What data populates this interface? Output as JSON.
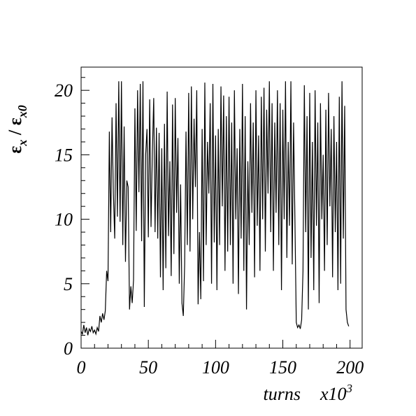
{
  "chart_data": {
    "type": "line",
    "ylabel_parts": [
      "ε",
      "x",
      " / ε",
      "x0"
    ],
    "xlabel": "turns",
    "xmultiplier": "x10",
    "xmultiplier_exp": "3",
    "xlim": [
      0,
      209
    ],
    "ylim": [
      0,
      21.8
    ],
    "xticks": [
      0,
      50,
      100,
      150,
      200
    ],
    "yticks": [
      0,
      5,
      10,
      15,
      20
    ],
    "xminorticks": [
      10,
      20,
      30,
      40,
      60,
      70,
      80,
      90,
      110,
      120,
      130,
      140,
      160,
      170,
      180,
      190
    ],
    "yminorticks": [
      1,
      2,
      3,
      4,
      6,
      7,
      8,
      9,
      11,
      12,
      13,
      14,
      16,
      17,
      18,
      19,
      21
    ],
    "series": [
      {
        "color": "#000000",
        "x": [
          0,
          1,
          2,
          3,
          4,
          5,
          6,
          7,
          8,
          9,
          10,
          11,
          12,
          13,
          14,
          15,
          16,
          17,
          18,
          19,
          20,
          21,
          22,
          23,
          24,
          25,
          26,
          27,
          28,
          29,
          30,
          31,
          32,
          33,
          34,
          35,
          36,
          37,
          38,
          39,
          40,
          41,
          42,
          43,
          44,
          45,
          46,
          47,
          48,
          49,
          50,
          51,
          52,
          53,
          54,
          55,
          56,
          57,
          58,
          59,
          60,
          61,
          62,
          63,
          64,
          65,
          66,
          67,
          68,
          69,
          70,
          71,
          72,
          73,
          74,
          75,
          76,
          77,
          78,
          79,
          80,
          81,
          82,
          83,
          84,
          85,
          86,
          87,
          88,
          89,
          90,
          91,
          92,
          93,
          94,
          95,
          96,
          97,
          98,
          99,
          100,
          101,
          102,
          103,
          104,
          105,
          106,
          107,
          108,
          109,
          110,
          111,
          112,
          113,
          114,
          115,
          116,
          117,
          118,
          119,
          120,
          121,
          122,
          123,
          124,
          125,
          126,
          127,
          128,
          129,
          130,
          131,
          132,
          133,
          134,
          135,
          136,
          137,
          138,
          139,
          140,
          141,
          142,
          143,
          144,
          145,
          146,
          147,
          148,
          149,
          150,
          151,
          152,
          153,
          154,
          155,
          156,
          157,
          158,
          159,
          160,
          161,
          162,
          163,
          164,
          165,
          166,
          167,
          168,
          169,
          170,
          171,
          172,
          173,
          174,
          175,
          176,
          177,
          178,
          179,
          180,
          181,
          182,
          183,
          184,
          185,
          186,
          187,
          188,
          189,
          190,
          191,
          192,
          193,
          194,
          195,
          196,
          197,
          198,
          199
        ],
        "values": [
          1.3,
          1.1,
          1.8,
          1.2,
          1.6,
          1.0,
          1.5,
          1.3,
          1.7,
          1.2,
          1.4,
          1.1,
          1.6,
          1.3,
          2.5,
          2.0,
          2.7,
          2.2,
          2.9,
          6.0,
          5.2,
          16.8,
          9.0,
          17.9,
          12.0,
          8.5,
          19.0,
          10.2,
          20.7,
          9.8,
          20.7,
          8.0,
          17.2,
          6.7,
          13.0,
          12.5,
          3.0,
          4.8,
          3.5,
          5.3,
          18.6,
          9.1,
          20.0,
          12.1,
          20.5,
          8.3,
          20.7,
          3.2,
          15.0,
          17.0,
          8.6,
          19.3,
          9.4,
          15.2,
          19.4,
          9.0,
          17.1,
          8.5,
          16.7,
          5.5,
          15.5,
          4.5,
          17.4,
          6.2,
          19.9,
          8.7,
          14.5,
          5.6,
          18.9,
          7.3,
          19.4,
          10.5,
          16.3,
          5.0,
          12.7,
          3.5,
          2.5,
          6.5,
          16.8,
          8.0,
          19.8,
          7.5,
          20.3,
          10.0,
          17.8,
          12.5,
          20.0,
          3.4,
          9.0,
          3.8,
          17.0,
          5.2,
          20.6,
          8.0,
          16.0,
          12.0,
          19.0,
          5.0,
          20.5,
          8.2,
          16.5,
          4.5,
          17.0,
          8.0,
          20.3,
          11.0,
          19.6,
          6.0,
          18.0,
          7.5,
          19.5,
          8.0,
          17.5,
          5.0,
          20.0,
          10.0,
          15.5,
          4.2,
          17.0,
          8.5,
          20.5,
          6.0,
          18.0,
          3.0,
          14.5,
          8.0,
          19.0,
          10.5,
          17.5,
          5.5,
          20.0,
          9.5,
          16.5,
          6.0,
          19.5,
          10.0,
          20.2,
          7.5,
          18.5,
          12.0,
          20.7,
          9.0,
          19.0,
          6.0,
          17.5,
          10.5,
          20.0,
          8.0,
          19.0,
          4.5,
          18.5,
          10.0,
          20.7,
          7.0,
          16.0,
          9.5,
          20.7,
          6.5,
          17.5,
          10.0,
          2.0,
          1.6,
          1.8,
          1.5,
          2.2,
          6.0,
          20.4,
          9.0,
          18.0,
          3.0,
          19.8,
          7.0,
          16.0,
          4.5,
          20.0,
          9.5,
          17.5,
          3.5,
          19.0,
          10.0,
          15.0,
          6.0,
          18.5,
          8.0,
          19.8,
          11.0,
          17.0,
          5.5,
          18.0,
          9.0,
          16.0,
          4.5,
          19.5,
          5.0,
          20.7,
          8.5,
          18.8,
          3.0,
          2.0,
          1.7
        ]
      }
    ]
  }
}
